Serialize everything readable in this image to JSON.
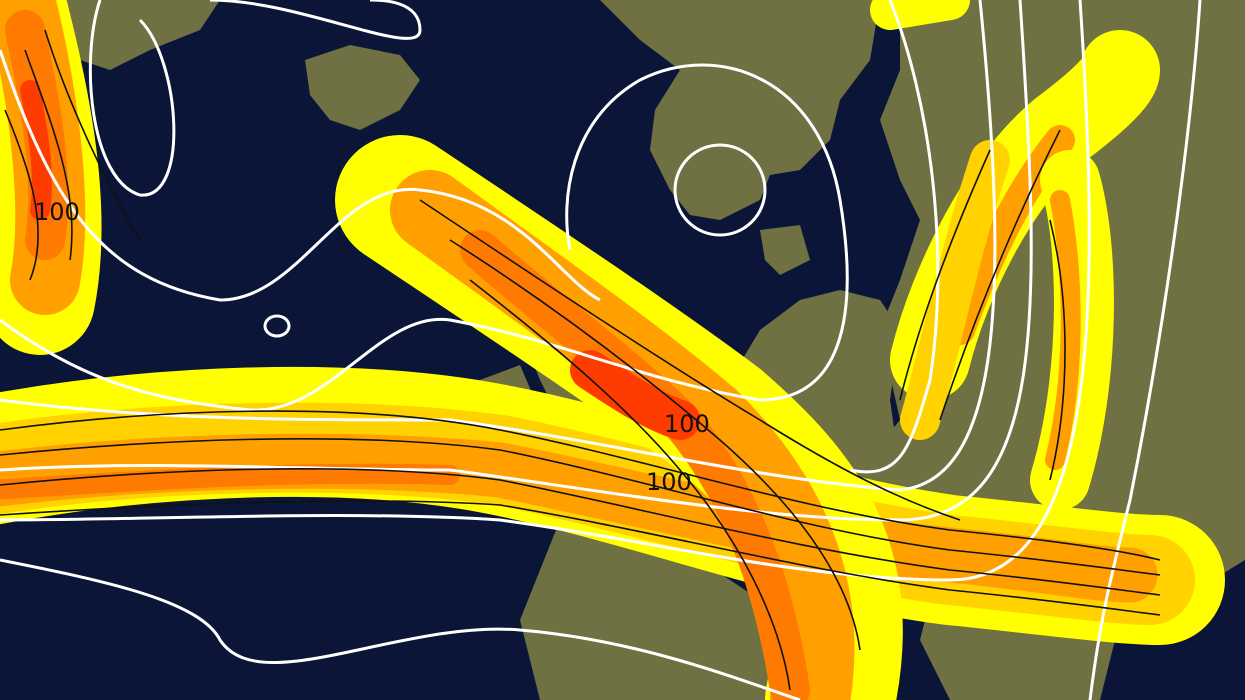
{
  "map": {
    "colors": {
      "ocean": "#0a1538",
      "land": "#6f7142",
      "wind_band_1": "#ffff00",
      "wind_band_2": "#ffd200",
      "wind_band_3": "#ffa000",
      "wind_band_4": "#ff7a00",
      "wind_band_5": "#ff3c00",
      "contour": "#ffffff",
      "streamline": "#111111"
    },
    "contour_labels": [
      {
        "text": "100"
      },
      {
        "text": "100"
      },
      {
        "text": "100"
      }
    ]
  }
}
